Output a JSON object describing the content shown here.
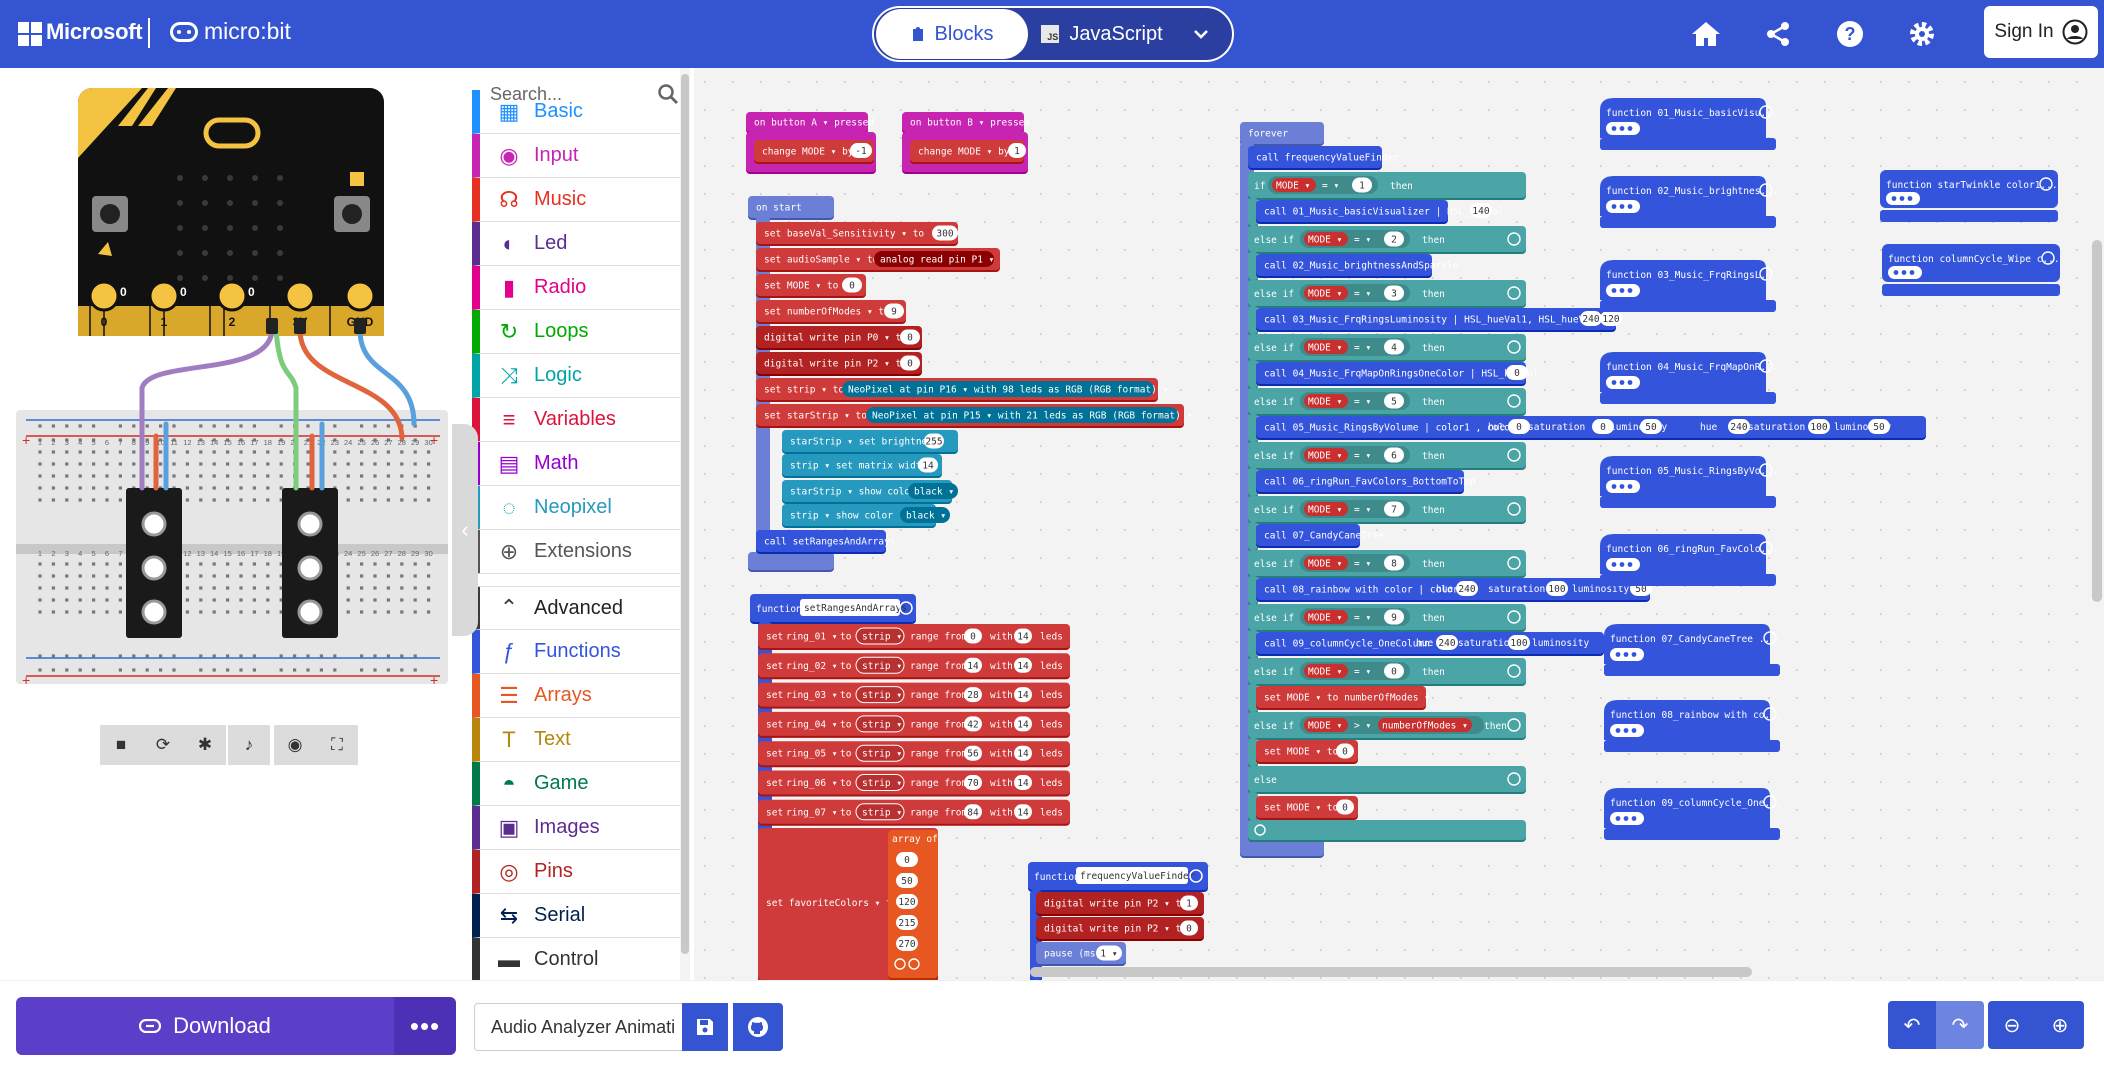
{
  "header": {
    "brand": "Microsoft",
    "product": "micro:bit",
    "mode_blocks": "Blocks",
    "mode_js": "JavaScript",
    "js_badge": "JS",
    "sign_in": "Sign In",
    "accent": "#3454d1"
  },
  "simulator": {
    "pin_labels": [
      "0",
      "1",
      "2",
      "3V",
      "GND"
    ],
    "toolbar_icons": [
      "stop-icon",
      "restart-icon",
      "debug-icon",
      "mute-icon",
      "screenshot-icon",
      "fullscreen-icon"
    ],
    "breadboard_numbers": [
      "1",
      "2",
      "3",
      "4",
      "5",
      "6",
      "7",
      "8",
      "9",
      "10",
      "11",
      "12",
      "13",
      "14",
      "15",
      "16",
      "17",
      "18",
      "19",
      "20",
      "21",
      "22",
      "23",
      "24",
      "25",
      "26",
      "27",
      "28",
      "29",
      "30"
    ]
  },
  "toolbox": {
    "search_placeholder": "Search...",
    "categories": [
      {
        "label": "Basic",
        "color": "#1e90ff",
        "icon": "grid-icon"
      },
      {
        "label": "Input",
        "color": "#c724b1",
        "icon": "circle-icon"
      },
      {
        "label": "Music",
        "color": "#e63022",
        "icon": "headphones-icon"
      },
      {
        "label": "Led",
        "color": "#5c2d91",
        "icon": "toggle-icon"
      },
      {
        "label": "Radio",
        "color": "#e3008c",
        "icon": "signal-icon"
      },
      {
        "label": "Loops",
        "color": "#00aa00",
        "icon": "refresh-icon"
      },
      {
        "label": "Logic",
        "color": "#00a4a6",
        "icon": "shuffle-icon"
      },
      {
        "label": "Variables",
        "color": "#dc143c",
        "icon": "list-icon"
      },
      {
        "label": "Math",
        "color": "#9400d3",
        "icon": "calculator-icon"
      },
      {
        "label": "Neopixel",
        "color": "#2699bf",
        "icon": "ring-icon"
      },
      {
        "label": "Extensions",
        "color": "#555555",
        "icon": "plus-circle-icon"
      },
      {
        "label": "Advanced",
        "color": "#3c3c3c",
        "icon": "chevron-up-icon"
      },
      {
        "label": "Functions",
        "color": "#3455db",
        "icon": "function-icon"
      },
      {
        "label": "Arrays",
        "color": "#e65722",
        "icon": "list-ol-icon"
      },
      {
        "label": "Text",
        "color": "#b8860b",
        "icon": "text-icon"
      },
      {
        "label": "Game",
        "color": "#007a4b",
        "icon": "gamepad-icon"
      },
      {
        "label": "Images",
        "color": "#5c2d91",
        "icon": "image-icon"
      },
      {
        "label": "Pins",
        "color": "#b22222",
        "icon": "target-icon"
      },
      {
        "label": "Serial",
        "color": "#002050",
        "icon": "usb-icon"
      },
      {
        "label": "Control",
        "color": "#333333",
        "icon": "control-icon"
      }
    ]
  },
  "workspace": {
    "colors": {
      "input": "#c724b1",
      "loops": "#6b7fd6",
      "variables": "#cf3a3a",
      "pins": "#b22222",
      "neopixel": "#2699bf",
      "logic": "#4ba4a5",
      "functions": "#3455db",
      "arrays": "#e65722"
    },
    "on_button_a": {
      "title": "on button  A ▾  pressed",
      "body": "change  MODE ▾  by",
      "value": "-1"
    },
    "on_button_b": {
      "title": "on button  B ▾  pressed",
      "body": "change  MODE ▾  by",
      "value": "1"
    },
    "on_start": {
      "title": "on start",
      "lines": [
        {
          "text": "set  baseVal_Sensitivity ▾  to",
          "value": "300"
        },
        {
          "text": "set  audioSample ▾  to",
          "extra": "analog read pin  P1 ▾"
        },
        {
          "text": "set  MODE ▾  to",
          "value": "0"
        },
        {
          "text": "set  numberOfModes ▾  to",
          "value": "9"
        },
        {
          "text": "digital write pin  P0 ▾  to",
          "value": "0"
        },
        {
          "text": "digital write pin  P2 ▾  to",
          "value": "0"
        },
        {
          "text": "set  strip ▾  to",
          "extra": "NeoPixel at pin  P16 ▾  with  98  leds as  RGB (RGB format) ▾"
        },
        {
          "text": "set  starStrip ▾  to",
          "extra": "NeoPixel at pin  P15 ▾  with  21  leds as  RGB (RGB format) ▾"
        },
        {
          "text": "starStrip ▾   set brightness",
          "value": "255"
        },
        {
          "text": "strip ▾   set matrix width",
          "value": "14"
        },
        {
          "text": "starStrip ▾   show color",
          "extra": "black ▾"
        },
        {
          "text": "strip ▾   show color",
          "extra": "black ▾"
        },
        {
          "text": "call setRangesAndArrays"
        }
      ]
    },
    "fn_set_ranges": {
      "keyword": "function",
      "name": "setRangesAndArrays",
      "rows": [
        {
          "var": "ring_01 ▾",
          "from": "0",
          "with": "14"
        },
        {
          "var": "ring_02 ▾",
          "from": "14",
          "with": "14"
        },
        {
          "var": "ring_03 ▾",
          "from": "28",
          "with": "14"
        },
        {
          "var": "ring_04 ▾",
          "from": "42",
          "with": "14"
        },
        {
          "var": "ring_05 ▾",
          "from": "56",
          "with": "14"
        },
        {
          "var": "ring_06 ▾",
          "from": "70",
          "with": "14"
        },
        {
          "var": "ring_07 ▾",
          "from": "84",
          "with": "14"
        }
      ],
      "row_to": "to",
      "row_strip": "strip ▾",
      "row_range": "range from",
      "row_with": "with",
      "row_leds": "leds",
      "row_set": "set",
      "fav_text": "set  favoriteColors ▾  to",
      "array_of": "array of",
      "array_values": [
        "0",
        "50",
        "120",
        "215",
        "270"
      ]
    },
    "forever": {
      "title": "forever",
      "call_first": "call frequencyValueFinder",
      "branches": [
        {
          "cond": "if",
          "value": "1",
          "call": "call 01_Music_basicVisualizer | HSL_hueVal",
          "args": [
            "140"
          ]
        },
        {
          "cond": "else if",
          "value": "2",
          "call": "call 02_Music_brightnessAndSparkle",
          "args": []
        },
        {
          "cond": "else if",
          "value": "3",
          "call": "call 03_Music_FrqRingsLuminosity | HSL_hueVal1, HSL_hueVal2",
          "args": [
            "240",
            "120"
          ]
        },
        {
          "cond": "else if",
          "value": "4",
          "call": "call 04_Music_FrqMapOnRingsOneColor | HSL_hueVal",
          "args": [
            "0"
          ]
        },
        {
          "cond": "else if",
          "value": "5",
          "call": "call 05_Music_RingsByVolume | color1 , color2",
          "args": [
            "hue",
            "0",
            "saturation",
            "0",
            "luminosity",
            "50",
            "hue",
            "240",
            "saturation",
            "100",
            "luminosity",
            "50"
          ]
        },
        {
          "cond": "else if",
          "value": "6",
          "call": "call 06_ringRun_FavColors_BottomToTop",
          "args": []
        },
        {
          "cond": "else if",
          "value": "7",
          "call": "call 07_CandyCaneTree",
          "args": []
        },
        {
          "cond": "else if",
          "value": "8",
          "call": "call 08_rainbow with color | color",
          "args": [
            "hue",
            "240",
            "saturation",
            "100",
            "luminosity",
            "50"
          ]
        },
        {
          "cond": "else if",
          "value": "9",
          "call": "call 09_columnCycle_OneColumn",
          "args": [
            "hue",
            "240",
            "saturation",
            "100",
            "luminosity"
          ]
        },
        {
          "cond": "else if",
          "value": "0",
          "call": "set  MODE ▾  to  numberOfModes ▾",
          "args": []
        }
      ],
      "mode_var": "MODE ▾",
      "op_eq": "= ▾",
      "op_gt": "> ▾",
      "then": "then",
      "last_cond": "else if",
      "last_compare": "numberOfModes ▾",
      "set_mode_zero": "set  MODE ▾  to",
      "zero": "0",
      "else_label": "else"
    },
    "fn_freq": {
      "keyword": "function",
      "name": "frequencyValueFinder",
      "lines": [
        {
          "text": "digital write pin  P2 ▾  to",
          "value": "1"
        },
        {
          "text": "digital write pin  P2 ▾  to",
          "value": "0"
        },
        {
          "text": "pause (ms)",
          "value": "1 ▾"
        }
      ]
    },
    "collapsed_functions": [
      "function 01_Music_basicVisu...",
      "function 02_Music_brightnes...",
      "function 03_Music_FrqRingsL...",
      "function 04_Music_FrqMapOnR...",
      "function 05_Music_RingsByVo...",
      "function 06_ringRun_FavColo...",
      "function 07_CandyCaneTree  ...",
      "function 08_rainbow with co...",
      "function 09_columnCycle_One..."
    ],
    "collapsed_functions_right": [
      "function starTwinkle color1...",
      "function columnCycle_Wipe c..."
    ]
  },
  "footer": {
    "download": "Download",
    "more": "•••",
    "project_name": "Audio Analyzer Animati",
    "download_color": "#5c3fc8"
  }
}
